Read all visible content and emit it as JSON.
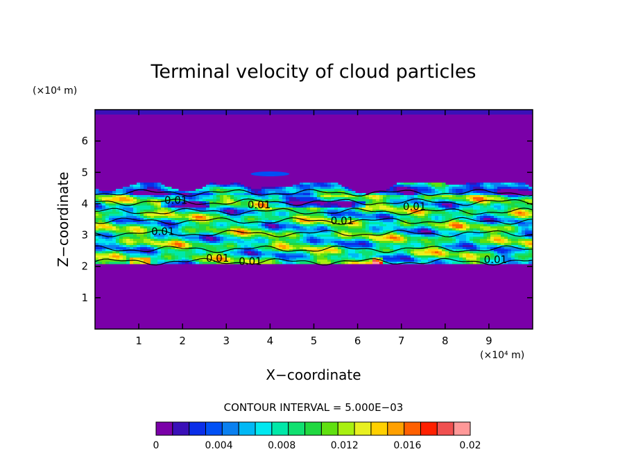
{
  "chart_data": {
    "type": "heatmap",
    "title": "Terminal velocity of cloud particles",
    "xlabel": "X−coordinate",
    "ylabel": "Z−coordinate",
    "x_unit": "(×10⁴ m)",
    "y_unit": "(×10⁴ m)",
    "xlim": [
      0,
      10
    ],
    "ylim": [
      0,
      7
    ],
    "x_ticks": [
      "1",
      "2",
      "3",
      "4",
      "5",
      "6",
      "7",
      "8",
      "9"
    ],
    "y_ticks": [
      "1",
      "2",
      "3",
      "4",
      "5",
      "6"
    ],
    "contour_interval_text": "CONTOUR INTERVAL = 5.000E−03",
    "contour_labels": [
      {
        "text": "0.01",
        "x": 1.85,
        "z": 4.0
      },
      {
        "text": "0.01",
        "x": 3.75,
        "z": 3.85
      },
      {
        "text": "0.01",
        "x": 1.55,
        "z": 3.0
      },
      {
        "text": "0.01",
        "x": 5.65,
        "z": 3.35
      },
      {
        "text": "0.01",
        "x": 7.3,
        "z": 3.8
      },
      {
        "text": "0.01",
        "x": 2.8,
        "z": 2.15
      },
      {
        "text": "0.01",
        "x": 3.55,
        "z": 2.05
      },
      {
        "text": "0.01",
        "x": 9.15,
        "z": 2.1
      }
    ],
    "cloud_layer_z": [
      2.1,
      4.65
    ],
    "colorbar": {
      "min": 0,
      "max": 0.02,
      "tick_labels": [
        "0",
        "0.004",
        "0.008",
        "0.012",
        "0.016",
        "0.02"
      ],
      "colors": [
        "#7a00a8",
        "#3a10b8",
        "#0a2ee8",
        "#0050f5",
        "#0a80f0",
        "#00b8f5",
        "#00e8f0",
        "#00e8a8",
        "#10e070",
        "#20d840",
        "#60e010",
        "#a8f010",
        "#e8f020",
        "#ffd000",
        "#ffa000",
        "#ff6000",
        "#ff2000",
        "#f05050",
        "#ff9898"
      ]
    }
  }
}
